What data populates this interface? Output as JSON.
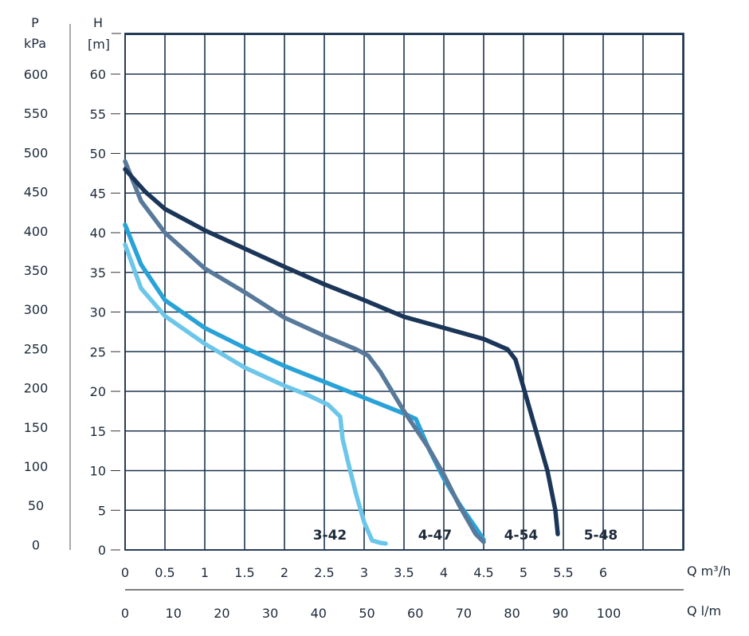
{
  "chart_data": {
    "type": "line",
    "pressure_axis": {
      "title_top": "P",
      "title_bottom": "kPa",
      "ticks": [
        600,
        550,
        500,
        450,
        400,
        350,
        300,
        250,
        200,
        150,
        100,
        50,
        0
      ]
    },
    "head_axis": {
      "title_top": "H",
      "title_bottom": "[m]",
      "range": [
        0,
        60
      ],
      "ticks": [
        0,
        5,
        10,
        15,
        20,
        25,
        30,
        35,
        40,
        45,
        50,
        55,
        60
      ]
    },
    "x_axis_m3h": {
      "label": "Q m³/h",
      "range": [
        0,
        7
      ],
      "ticks": [
        "0",
        "0.5",
        "1",
        "1.5",
        "2",
        "2.5",
        "3",
        "3.5",
        "4",
        "4.5",
        "5",
        "5.5",
        "6"
      ]
    },
    "x_axis_lm": {
      "label": "Q l/m",
      "ticks": [
        "0",
        "10",
        "20",
        "30",
        "40",
        "50",
        "60",
        "70",
        "80",
        "90",
        "100"
      ]
    },
    "grid": true,
    "series": [
      {
        "name": "3-42",
        "color": "#6cc6ea",
        "points": [
          [
            0,
            38.5
          ],
          [
            0.2,
            33
          ],
          [
            0.5,
            29.5
          ],
          [
            1,
            26
          ],
          [
            1.5,
            23
          ],
          [
            2,
            20.7
          ],
          [
            2.3,
            19.5
          ],
          [
            2.55,
            18.3
          ],
          [
            2.7,
            16.8
          ],
          [
            2.73,
            14
          ],
          [
            2.8,
            11
          ],
          [
            2.9,
            7
          ],
          [
            3.0,
            3.5
          ],
          [
            3.1,
            1.2
          ],
          [
            3.2,
            0.9
          ],
          [
            3.27,
            0.8
          ]
        ]
      },
      {
        "name": "4-47",
        "color": "#29a2d8",
        "points": [
          [
            0,
            41
          ],
          [
            0.2,
            36
          ],
          [
            0.5,
            31.5
          ],
          [
            1,
            28
          ],
          [
            1.5,
            25.5
          ],
          [
            2,
            23.2
          ],
          [
            2.5,
            21.2
          ],
          [
            3,
            19.2
          ],
          [
            3.3,
            18
          ],
          [
            3.5,
            17.2
          ],
          [
            3.65,
            16.5
          ],
          [
            3.8,
            13
          ],
          [
            4,
            9
          ],
          [
            4.2,
            5.7
          ],
          [
            4.4,
            2.8
          ],
          [
            4.5,
            1.3
          ]
        ]
      },
      {
        "name": "4-54",
        "color": "#58799a",
        "points": [
          [
            0,
            49
          ],
          [
            0.2,
            44
          ],
          [
            0.5,
            40
          ],
          [
            1,
            35.5
          ],
          [
            1.5,
            32.5
          ],
          [
            2,
            29.3
          ],
          [
            2.5,
            27
          ],
          [
            2.9,
            25.3
          ],
          [
            3.05,
            24.5
          ],
          [
            3.2,
            22.5
          ],
          [
            3.5,
            17.5
          ],
          [
            3.8,
            13
          ],
          [
            4,
            9.5
          ],
          [
            4.2,
            5.5
          ],
          [
            4.4,
            2
          ],
          [
            4.5,
            1
          ]
        ]
      },
      {
        "name": "5-48",
        "color": "#1b3658",
        "points": [
          [
            0,
            48
          ],
          [
            0.25,
            45.2
          ],
          [
            0.5,
            43
          ],
          [
            1,
            40.3
          ],
          [
            1.5,
            38
          ],
          [
            2,
            35.7
          ],
          [
            2.5,
            33.5
          ],
          [
            3,
            31.5
          ],
          [
            3.5,
            29.4
          ],
          [
            4,
            28
          ],
          [
            4.5,
            26.6
          ],
          [
            4.8,
            25.3
          ],
          [
            4.9,
            24
          ],
          [
            5.1,
            17
          ],
          [
            5.3,
            10
          ],
          [
            5.4,
            5
          ],
          [
            5.43,
            2
          ]
        ]
      }
    ]
  }
}
